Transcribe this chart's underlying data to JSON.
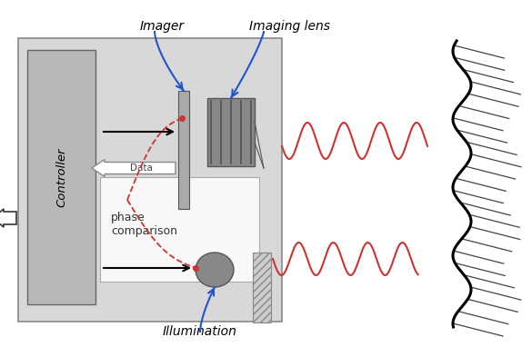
{
  "bg_color": "#ffffff",
  "box_outer_color": "#d8d8d8",
  "controller_color": "#b0b0b0",
  "white_panel_color": "#f8f8f8",
  "red_wave_color": "#cc3333",
  "blue_arrow_color": "#2255cc",
  "label_imager": "Imager",
  "label_imaging_lens": "Imaging lens",
  "label_illumination": "Illumination",
  "label_phase": "phase\ncomparison",
  "label_data": "Data",
  "label_controller": "Controller",
  "figsize": [
    5.85,
    3.93
  ],
  "dpi": 100
}
